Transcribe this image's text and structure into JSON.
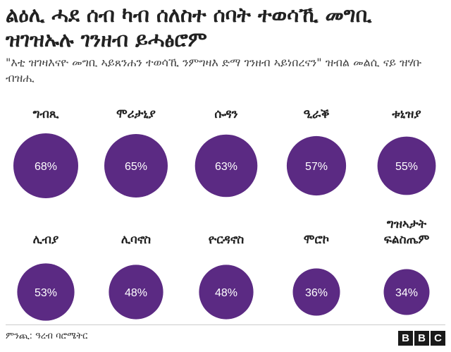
{
  "header": {
    "title": "ልዕሊ ሓደ ሰብ ካብ ሰለስተ ሰባት ተወሳኺ መግቢ ዝገዝኡሉ ገንዘብ ይሓፅሮም",
    "subtitle": "\"እቲ ዝገዛእናዮ መግቢ ኣይጸንሐን ተወሳኺ ንምግዛእ ድማ ገንዘብ ኣይነበረናን\" ዝብል መልሲ ናይ ዝሃቡ ብዝሒ"
  },
  "chart_data": {
    "type": "bubble-grid",
    "title": "ልዕሊ ሓደ ሰብ ካብ ሰለስተ ሰባት ተወሳኺ መግቢ ዝገዝኡሉ ገንዘብ ይሓፅሮም",
    "subtitle": "\"እቲ ዝገዛእናዮ መግቢ ኣይጸንሐን ተወሳኺ ንምግዛእ ድማ ገንዘብ ኣይነበረናን\" ዝብል መልሲ ናይ ዝሃቡ ብዝሒ",
    "unit": "%",
    "bubble_color": "#5b2a83",
    "label_color": "#ffffff",
    "categories": [
      [
        "ግብጺ"
      ],
      [
        "ሞሪታኒያ"
      ],
      [
        "ሱዳን"
      ],
      [
        "ዒራቕ"
      ],
      [
        "ቱኒዝያ"
      ],
      [
        "ሊብያ"
      ],
      [
        "ሊባኖስ"
      ],
      [
        "ዮርዳኖስ"
      ],
      [
        "ሞሮኮ"
      ],
      [
        "ግዝኣታት",
        "ፍልስጤም"
      ]
    ],
    "values": [
      68,
      65,
      63,
      57,
      55,
      53,
      48,
      48,
      36,
      34
    ],
    "value_labels": [
      "68%",
      "65%",
      "63%",
      "57%",
      "55%",
      "53%",
      "48%",
      "48%",
      "36%",
      "34%"
    ]
  },
  "footer": {
    "source": "ምንጪ: ዓረብ ባሮሜትር",
    "logo_letters": [
      "B",
      "B",
      "C"
    ]
  }
}
